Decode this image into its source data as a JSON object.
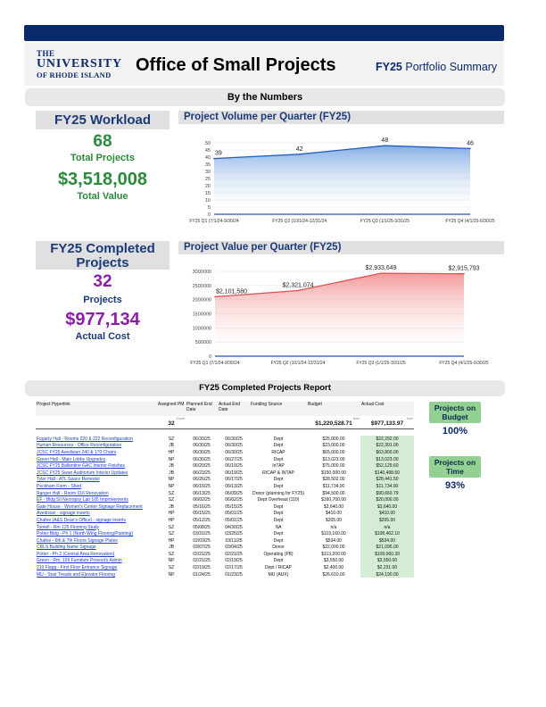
{
  "header": {
    "logo_line1": "THE",
    "logo_line2": "UNIVERSITY",
    "logo_line3": "OF RHODE ISLAND",
    "title": "Office of Small Projects",
    "fy_bold": "FY25",
    "fy_rest": "Portfolio Summary"
  },
  "by_numbers": "By the Numbers",
  "workload": {
    "title": "FY25 Workload",
    "total_projects": "68",
    "total_projects_label": "Total Projects",
    "total_value": "$3,518,008",
    "total_value_label": "Total Value"
  },
  "completed": {
    "title": "FY25 Completed Projects",
    "count": "32",
    "count_label": "Projects",
    "cost": "$977,134",
    "cost_label": "Actual Cost"
  },
  "colors": {
    "navy": "#0b2a6b",
    "green": "#2a8a3a",
    "purple": "#8b1fa8",
    "blue_line": "#1f5fbf",
    "red_line": "#e05050"
  },
  "chart_data": [
    {
      "type": "area",
      "title": "Project Volume per Quarter (FY25)",
      "categories": [
        "FY25 Q1 (7/1/24-9/30/24",
        "FY25 Q2 (10/1/24-12/31/24",
        "FY25 Q3 (1/1/25-3/31/25",
        "FY25 Q4 (4/1/25-6/30/25"
      ],
      "values": [
        39,
        42,
        48,
        46
      ],
      "ylim": [
        0,
        50
      ],
      "yticks": [
        0,
        5,
        10,
        15,
        20,
        25,
        30,
        35,
        40,
        45,
        50
      ],
      "data_labels": [
        "39",
        "42",
        "48",
        "46"
      ],
      "grid": true
    },
    {
      "type": "area",
      "title": "Project Value per Quarter (FY25)",
      "categories": [
        "FY25 Q1 (7/1/24-9/30/24",
        "FY25 Q2 (10/1/24-12/31/24",
        "FY25 Q3 (1/1/25-3/31/25",
        "FY25 Q4 (4/1/25-6/30/25"
      ],
      "values": [
        2101580,
        2321074,
        2933649,
        2915793
      ],
      "ylim": [
        0,
        3000000
      ],
      "yticks": [
        0,
        500000,
        1000000,
        1500000,
        2000000,
        2500000,
        3000000
      ],
      "data_labels": [
        "$2,101,580",
        "$2,321,074",
        "$2,933,649",
        "$2,915,793"
      ],
      "grid": true
    }
  ],
  "report": {
    "title": "FY25 Completed Projects Report",
    "headers": [
      "Project Hyperlink",
      "Assigned PM",
      "Planned End Date",
      "Actual End Date",
      "Funding Source",
      "Budget",
      "Actual Cost"
    ],
    "count_label": "Count",
    "count": "32",
    "sum_label": "Sum",
    "budget_sum": "$1,220,528.71",
    "cost_sum": "$977,133.97",
    "rows": [
      [
        "Fogarty Hall - Rooms 220 & 222 Reconfiguration",
        "SZ",
        "06/30/25",
        "06/30/25",
        "Dept",
        "$25,000.00",
        "$22,292.00"
      ],
      [
        "Human Resources - Office Reconfiguration",
        "JB",
        "06/30/25",
        "06/30/25",
        "Dept",
        "$23,000.00",
        "$22,391.00"
      ],
      [
        "JCSC FY25 Avedisian 240 & 170 Chairs",
        "HP",
        "06/30/25",
        "06/30/25",
        "RICAP",
        "$65,000.00",
        "$63,800.00"
      ],
      [
        "Green Hall - Main Lobby Upgrades",
        "NP",
        "06/30/25",
        "06/27/25",
        "Dept",
        "$13,023.00",
        "$13,023.00"
      ],
      [
        "JCSC FY25 Ballentine GAC Interior Finishes",
        "JB",
        "06/20/25",
        "06/19/25",
        "InTAP",
        "$75,000.00",
        "$52,129.60"
      ],
      [
        "JCSC FY25 Swan Auditorium Interior Updates",
        "JB",
        "06/23/25",
        "06/19/25",
        "RICAP & INTAP",
        "$150,000.00",
        "$140,498.50"
      ],
      [
        "Tyler Hall - ATL Space Remodel",
        "NP",
        "06/26/25",
        "06/17/25",
        "Dept",
        "$28,502.00",
        "$28,441.50"
      ],
      [
        "Peckham Farm - Shed",
        "NP",
        "06/16/25",
        "06/13/25",
        "Dept",
        "$11,734.00",
        "$11,734.00"
      ],
      [
        "Ranger Hall - Room 016 Renovation",
        "SZ",
        "06/13/25",
        "06/09/25",
        "Donor (planning for FY25)",
        "$94,500.00",
        "$90,660.79"
      ],
      [
        "EF - Bldg 50 Necropsy Lab 105 Improvements",
        "SZ",
        "06/02/25",
        "06/02/25",
        "Dept Overhead (110)",
        "$160,700.00",
        "$20,000.00"
      ],
      [
        "Gate House - Women's Center Signage Replacement",
        "JB",
        "05/16/25",
        "05/15/25",
        "Dept",
        "$3,640.00",
        "$3,640.00"
      ],
      [
        "Avedisian - signage inserts",
        "HP",
        "05/15/25",
        "05/01/25",
        "Dept",
        "$410.00",
        "$410.00"
      ],
      [
        "Chafee (A&S Dean's Office) - signage inserts",
        "HP",
        "05/12/25",
        "05/01/25",
        "Dept",
        "$205.00",
        "$205.00"
      ],
      [
        "Tootell - Rm 125 Flooring Study",
        "SZ",
        "05/08/25",
        "04/30/25",
        "NA",
        "n/a",
        "n/a"
      ],
      [
        "Potter Bldg - Ph 1 (North Wing Flooring/Painting)",
        "SZ",
        "03/31/25",
        "03/25/25",
        "Dept",
        "$119,160.00",
        "$108,462.10"
      ],
      [
        "Chafee - 6th & 7th Floors Signage Plates",
        "HP",
        "02/03/25",
        "03/11/25",
        "Dept",
        "$534.00",
        "$534.00"
      ],
      [
        "CBLS Building Name Signage",
        "JB",
        "03/07/25",
        "03/04/25",
        "Donor",
        "$22,000.00",
        "$21,095.00"
      ],
      [
        "Potter - Ph 2 (Central Area Renovation)",
        "SZ",
        "02/21/25",
        "02/21/25",
        "Operating (FB)",
        "$113,200.00",
        "$109,060.39"
      ],
      [
        "Green - Rm. 109 Furniture Provost's Admin",
        "NP",
        "02/21/25",
        "02/19/25",
        "Dept",
        "$3,550.00",
        "$3,550.00"
      ],
      [
        "210 Flagg - First Floor Entrance Signage",
        "SZ",
        "02/19/25",
        "02/17/25",
        "Dept / RICAP",
        "$2,400.00",
        "$2,231.00"
      ],
      [
        "MU - Stair Treads and Elevator Flooring",
        "NP",
        "01/24/25",
        "01/23/25",
        "MU (AUX)",
        "$26,610.00",
        "$24,190.00"
      ]
    ]
  },
  "metrics": {
    "budget_label": "Projects on Budget",
    "budget_pct": "100%",
    "time_label": "Projects on Time",
    "time_pct": "93%"
  }
}
